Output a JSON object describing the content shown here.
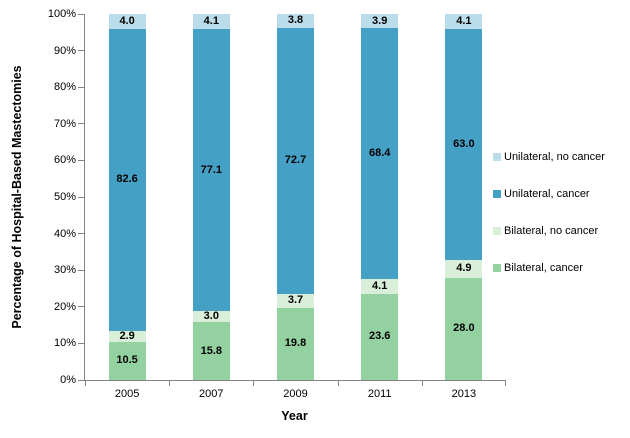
{
  "chart_data": {
    "type": "bar",
    "stacked": true,
    "title": "",
    "xlabel": "Year",
    "ylabel": "Percentage of Hospital-Based Mastectomies",
    "categories": [
      "2005",
      "2007",
      "2009",
      "2011",
      "2013"
    ],
    "series": [
      {
        "name": "Bilateral, cancer",
        "color": "#94D1A1",
        "values": [
          10.5,
          15.8,
          19.8,
          23.6,
          28.0
        ]
      },
      {
        "name": "Bilateral, no cancer",
        "color": "#DAEFDA",
        "values": [
          2.9,
          3.0,
          3.7,
          4.1,
          4.9
        ]
      },
      {
        "name": "Unilateral, cancer",
        "color": "#45A0C6",
        "values": [
          82.6,
          77.1,
          72.7,
          68.4,
          63.0
        ]
      },
      {
        "name": "Unilateral, no cancer",
        "color": "#BBDCEA",
        "values": [
          4.0,
          4.1,
          3.8,
          3.9,
          4.1
        ]
      }
    ],
    "stack_order": "bottom-to-top",
    "value_label_decimals": 1,
    "y_ticks": [
      "0%",
      "10%",
      "20%",
      "30%",
      "40%",
      "50%",
      "60%",
      "70%",
      "80%",
      "90%",
      "100%"
    ],
    "ylim": [
      0,
      100
    ],
    "grid": false,
    "legend_position": "right",
    "legend_order": [
      "Unilateral, no cancer",
      "Unilateral, cancer",
      "Bilateral, no cancer",
      "Bilateral, cancer"
    ],
    "axis_color": "#848484",
    "background_color": "#ffffff",
    "label_color": "#000000"
  }
}
